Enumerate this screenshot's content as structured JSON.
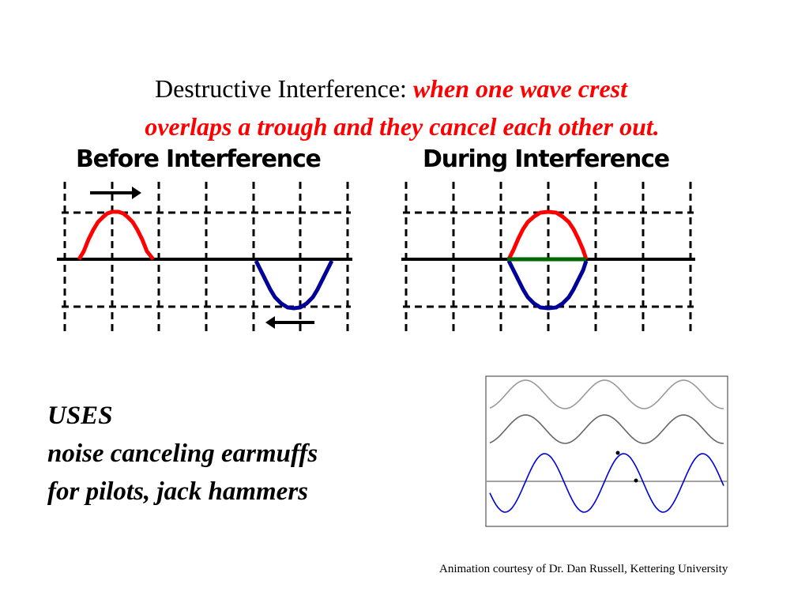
{
  "slide": {
    "title_plain": "Destructive Interference: ",
    "title_emphasis_1": "when one wave crest",
    "title_emphasis_2": "overlaps a trough and they cancel each other out.",
    "title_emphasis_color": "#ff0000",
    "before_panel_label": "Before Interference",
    "during_panel_label": "During Interference",
    "uses_heading": "USES",
    "uses_line1": "noise canceling earmuffs",
    "uses_line2": "for pilots, jack hammers",
    "credit": "Animation courtesy of Dr. Dan Russell, Kettering University"
  },
  "colors": {
    "crest_wave": "#ff0000",
    "trough_wave": "#000099",
    "sum_wave": "#006600",
    "animation_wave_light": "#999999",
    "animation_wave_dark": "#666666",
    "animation_wave_sum": "#0000dd"
  },
  "icons": {
    "right_arrow": "right-arrow-icon",
    "left_arrow": "left-arrow-icon"
  }
}
